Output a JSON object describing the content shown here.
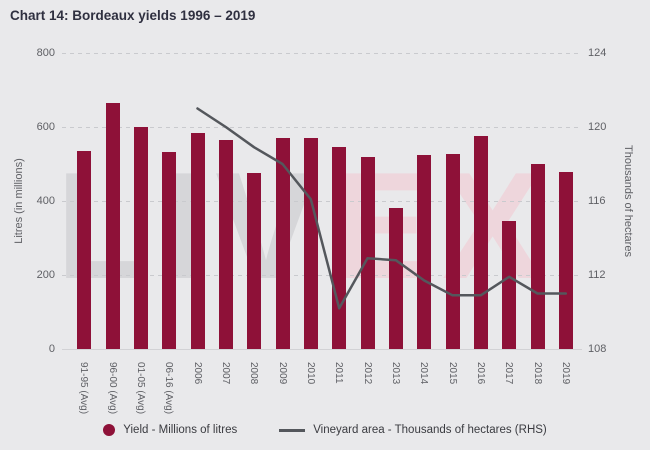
{
  "title": "Chart 14: Bordeaux yields 1996 – 2019",
  "watermark": {
    "part1": "LIV",
    "part2": "EX",
    "gray": "#d6d6d9",
    "pink": "#eed6dc"
  },
  "chart_data": {
    "type": "bar",
    "subtype": "bar+line combo",
    "categories": [
      "91-95 (Avg)",
      "96-00 (Avg)",
      "01-05 (Avg)",
      "06-16 (Avg)",
      "2006",
      "2007",
      "2008",
      "2009",
      "2010",
      "2011",
      "2012",
      "2013",
      "2014",
      "2015",
      "2016",
      "2017",
      "2018",
      "2019"
    ],
    "series": [
      {
        "name": "Yield - Millions of litres",
        "type": "bar",
        "axis": "left",
        "color": "#8e1138",
        "values": [
          535,
          665,
          600,
          533,
          585,
          566,
          476,
          570,
          569,
          545,
          520,
          380,
          524,
          527,
          575,
          345,
          500,
          478
        ]
      },
      {
        "name": "Vineyard area - Thousands of hectares (RHS)",
        "type": "line",
        "axis": "right",
        "color": "#54575c",
        "x_start_index": 4,
        "values": [
          121,
          120,
          118.9,
          118,
          116.1,
          110.2,
          112.9,
          112.8,
          111.7,
          110.9,
          110.9,
          111.9,
          111,
          111
        ]
      }
    ],
    "left_axis": {
      "label": "Litres (in millions)",
      "ticks": [
        0,
        200,
        400,
        600,
        800
      ],
      "range": [
        0,
        800
      ]
    },
    "right_axis": {
      "label": "Thousands of hectares",
      "ticks": [
        108,
        112,
        116,
        120,
        124
      ],
      "range": [
        108,
        124
      ]
    },
    "grid": "dashed horizontal gridlines, solid baseline",
    "legend_position": "bottom center",
    "title": "Chart 14: Bordeaux yields 1996 – 2019"
  },
  "legend": {
    "items": [
      {
        "label": "Yield - Millions of litres",
        "marker": "circle",
        "color": "#8e1138"
      },
      {
        "label": "Vineyard area - Thousands of hectares (RHS)",
        "marker": "line",
        "color": "#54575c"
      }
    ]
  }
}
